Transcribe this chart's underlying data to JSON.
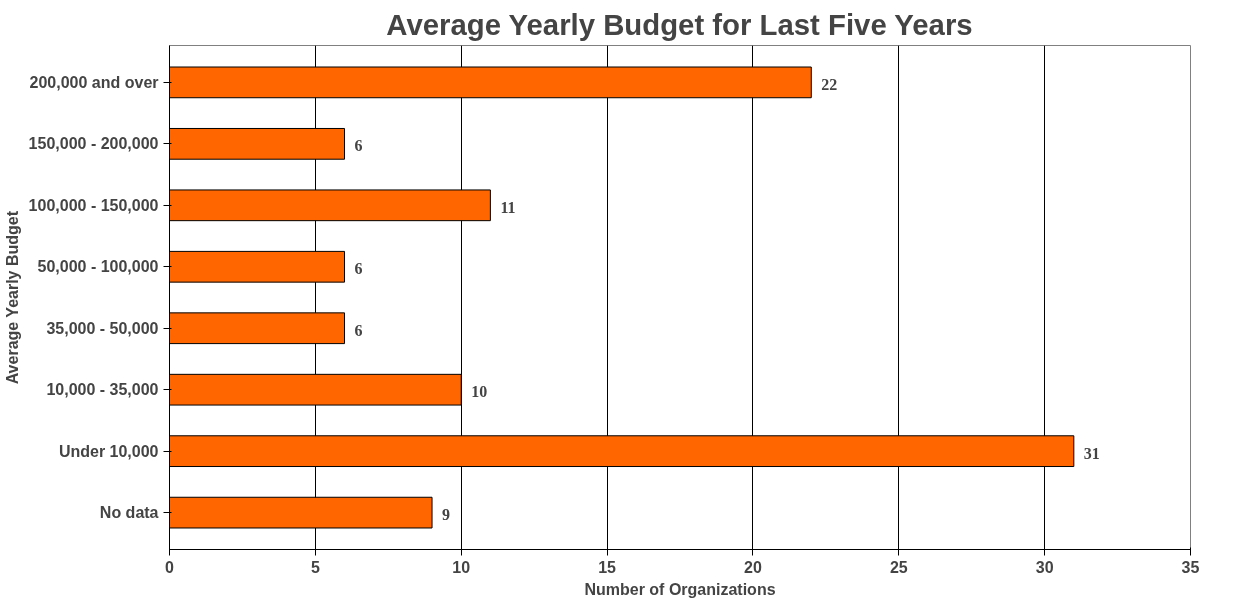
{
  "chart_data": {
    "type": "bar",
    "orientation": "horizontal",
    "title": "Average Yearly Budget for Last Five Years",
    "xlabel": "Number of Organizations",
    "ylabel": "Average Yearly Budget",
    "categories": [
      "200,000 and over",
      "150,000 - 200,000",
      "100,000 - 150,000",
      "50,000 - 100,000",
      "35,000 - 50,000",
      "10,000 - 35,000",
      "Under 10,000",
      "No data"
    ],
    "values": [
      22,
      6,
      11,
      6,
      6,
      10,
      31,
      9
    ],
    "color": "#ff6600",
    "xlim": [
      0,
      35
    ],
    "xticks": [
      0,
      5,
      10,
      15,
      20,
      25,
      30,
      35
    ],
    "grid": "x",
    "data_labels": true
  }
}
